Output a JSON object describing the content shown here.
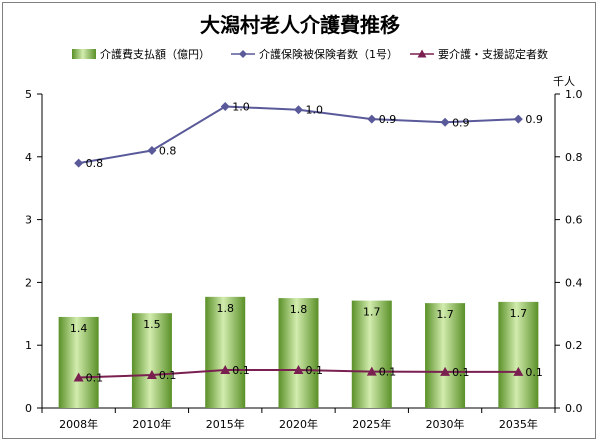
{
  "chart_data": {
    "type": "bar",
    "title": "大潟村老人介護費推移",
    "categories": [
      "2008年",
      "2010年",
      "2015年",
      "2020年",
      "2025年",
      "2030年",
      "2035年"
    ],
    "series": [
      {
        "name": "介護費支払額（億円）",
        "kind": "bar",
        "axis": "left",
        "color": "#66a032",
        "values": [
          1.45,
          1.51,
          1.77,
          1.75,
          1.71,
          1.67,
          1.69
        ],
        "labels": [
          "1.4",
          "1.5",
          "1.8",
          "1.8",
          "1.7",
          "1.7",
          "1.7"
        ]
      },
      {
        "name": "介護保険被保険者数（1号）",
        "kind": "line",
        "axis": "right",
        "color": "#5a5a9a",
        "marker": "diamond",
        "values": [
          0.78,
          0.82,
          0.96,
          0.95,
          0.92,
          0.91,
          0.92
        ],
        "labels": [
          "0.8",
          "0.8",
          "1.0",
          "1.0",
          "0.9",
          "0.9",
          "0.9"
        ]
      },
      {
        "name": "要介護・支援認定者数",
        "kind": "line",
        "axis": "right",
        "color": "#7a2050",
        "marker": "triangle",
        "values": [
          0.097,
          0.105,
          0.121,
          0.121,
          0.116,
          0.115,
          0.115
        ],
        "labels": [
          "0.1",
          "0.1",
          "0.1",
          "0.1",
          "0.1",
          "0.1",
          "0.1"
        ]
      }
    ],
    "left_axis": {
      "min": 0,
      "max": 5,
      "ticks": [
        "0",
        "1",
        "2",
        "3",
        "4",
        "5"
      ],
      "tick_values": [
        0,
        1,
        2,
        3,
        4,
        5
      ]
    },
    "right_axis": {
      "min": 0,
      "max": 1,
      "unit": "千人",
      "ticks": [
        "0.0",
        "0.2",
        "0.4",
        "0.6",
        "0.8",
        "1.0"
      ],
      "tick_values": [
        0,
        0.2,
        0.4,
        0.6,
        0.8,
        1.0
      ]
    },
    "grid": false,
    "legend": "top"
  }
}
